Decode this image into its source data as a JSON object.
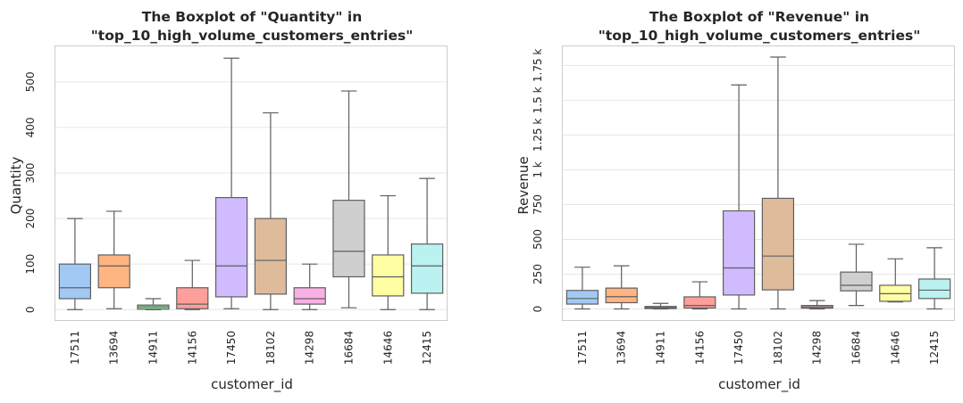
{
  "chart_data": [
    {
      "type": "boxplot",
      "title": "The Boxplot of \"Quantity\" in \"top_10_high_volume_customers_entries\"",
      "title_lines": [
        "The Boxplot of \"Quantity\" in",
        "\"top_10_high_volume_customers_entries\""
      ],
      "xlabel": "customer_id",
      "ylabel": "Quantity",
      "ylim": [
        -23,
        578
      ],
      "yticks": [
        0,
        100,
        200,
        300,
        400,
        500
      ],
      "ytick_labels": [
        "0",
        "100",
        "200",
        "300",
        "400",
        "500"
      ],
      "grid": true,
      "categories": [
        "17511",
        "13694",
        "14911",
        "14156",
        "17450",
        "18102",
        "14298",
        "16684",
        "14646",
        "12415"
      ],
      "colors": [
        "#a1c9f4",
        "#ffb482",
        "#8de5a1",
        "#ff9f9b",
        "#d0bbff",
        "#debb9b",
        "#fab0e4",
        "#cfcfcf",
        "#fffea3",
        "#b9f2f0"
      ],
      "boxes": [
        {
          "whislo": 0,
          "q1": 24,
          "med": 48,
          "q3": 100,
          "whishi": 200
        },
        {
          "whislo": 2,
          "q1": 48,
          "med": 96,
          "q3": 120,
          "whishi": 216
        },
        {
          "whislo": 0,
          "q1": 1,
          "med": 6,
          "q3": 10,
          "whishi": 24
        },
        {
          "whislo": 0,
          "q1": 2,
          "med": 12,
          "q3": 48,
          "whishi": 108
        },
        {
          "whislo": 2,
          "q1": 28,
          "med": 96,
          "q3": 246,
          "whishi": 552
        },
        {
          "whislo": 0,
          "q1": 34,
          "med": 108,
          "q3": 200,
          "whishi": 432
        },
        {
          "whislo": 0,
          "q1": 12,
          "med": 24,
          "q3": 48,
          "whishi": 100
        },
        {
          "whislo": 4,
          "q1": 72,
          "med": 128,
          "q3": 240,
          "whishi": 480
        },
        {
          "whislo": 0,
          "q1": 30,
          "med": 72,
          "q3": 120,
          "whishi": 250
        },
        {
          "whislo": 0,
          "q1": 36,
          "med": 96,
          "q3": 144,
          "whishi": 288
        }
      ]
    },
    {
      "type": "boxplot",
      "title": "The Boxplot of \"Revenue\" in \"top_10_high_volume_customers_entries\"",
      "title_lines": [
        "The Boxplot of \"Revenue\" in",
        "\"top_10_high_volume_customers_entries\""
      ],
      "xlabel": "customer_id",
      "ylabel": "Revenue",
      "ylim": [
        -80,
        1887
      ],
      "yticks": [
        0,
        250,
        500,
        750,
        1000,
        1250,
        1500,
        1750
      ],
      "ytick_labels": [
        "0",
        "250",
        "500",
        "750",
        "1 k",
        "1.25 k",
        "1.5 k",
        "1.75 k"
      ],
      "grid": true,
      "categories": [
        "17511",
        "13694",
        "14911",
        "14156",
        "17450",
        "18102",
        "14298",
        "16684",
        "14646",
        "12415"
      ],
      "colors": [
        "#a1c9f4",
        "#ffb482",
        "#8de5a1",
        "#ff9f9b",
        "#d0bbff",
        "#debb9b",
        "#fab0e4",
        "#cfcfcf",
        "#fffea3",
        "#b9f2f0"
      ],
      "boxes": [
        {
          "whislo": 0,
          "q1": 35,
          "med": 75,
          "q3": 133,
          "whishi": 300
        },
        {
          "whislo": 0,
          "q1": 45,
          "med": 88,
          "q3": 150,
          "whishi": 310
        },
        {
          "whislo": 0,
          "q1": 3,
          "med": 10,
          "q3": 18,
          "whishi": 40
        },
        {
          "whislo": 0,
          "q1": 7,
          "med": 25,
          "q3": 87,
          "whishi": 195
        },
        {
          "whislo": 0,
          "q1": 100,
          "med": 295,
          "q3": 705,
          "whishi": 1610
        },
        {
          "whislo": 0,
          "q1": 137,
          "med": 380,
          "q3": 795,
          "whishi": 1810
        },
        {
          "whislo": 0,
          "q1": 6,
          "med": 15,
          "q3": 25,
          "whishi": 60
        },
        {
          "whislo": 25,
          "q1": 130,
          "med": 170,
          "q3": 265,
          "whishi": 465
        },
        {
          "whislo": 50,
          "q1": 55,
          "med": 110,
          "q3": 170,
          "whishi": 360
        },
        {
          "whislo": 0,
          "q1": 75,
          "med": 135,
          "q3": 215,
          "whishi": 440
        }
      ]
    }
  ]
}
